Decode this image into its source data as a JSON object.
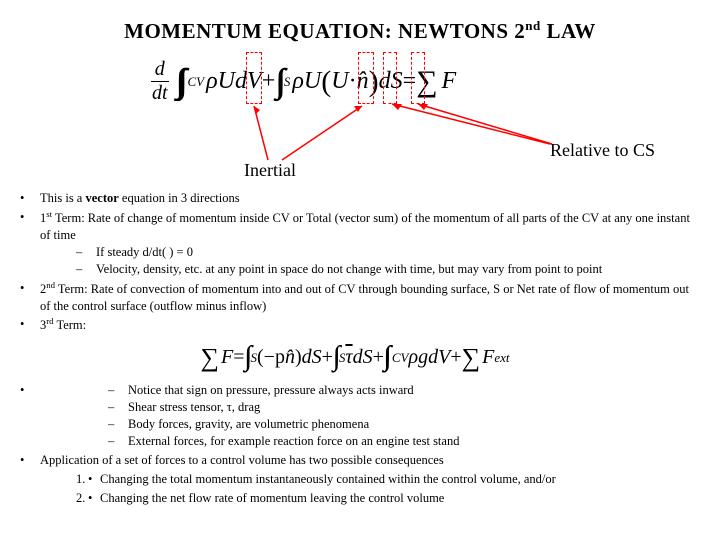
{
  "title_pre": "MOMENTUM EQUATION: NEWTONS 2",
  "title_sup": "nd",
  "title_post": " LAW",
  "eq1": {
    "frac_num": "d",
    "frac_den": "dt",
    "int_cv": "CV",
    "rho": "ρ",
    "U1": "U",
    "dV": "dV",
    "plus": " + ",
    "int_s": "S",
    "U2": "U",
    "lparen": "(",
    "U3": "U",
    "dot": " · ",
    "n": "n̂",
    "rparen": ")",
    "dS": "dS",
    "eq": " = ",
    "sum": "∑",
    "F": "F"
  },
  "label_inertial": "Inertial",
  "label_relative": "Relative to CS",
  "b1": "This is a ",
  "b1_bold": "vector",
  "b1_post": " equation in 3 directions",
  "b2_pre": "1",
  "b2_sup": "st",
  "b2_post": " Term: Rate of change of momentum inside CV or Total (vector sum) of the momentum of all parts of the CV at any one instant of time",
  "b2a": "If steady d/dt( ) = 0",
  "b2b": "Velocity, density, etc. at any point in space do not change with time, but may vary from point to point",
  "b3_pre": "2",
  "b3_sup": "nd",
  "b3_post": " Term: Rate of convection of momentum into and out of CV through bounding surface, S or Net rate of flow of momentum out of the control surface (outflow minus inflow)",
  "b4_pre": "3",
  "b4_sup": "rd",
  "b4_post": " Term:",
  "eq2": {
    "sum": "∑",
    "F": "F",
    "eq": " = ",
    "int_s": "S",
    "neg_p": "(−p",
    "n": "n̂",
    "rparen": ")",
    "dS1": "dS",
    "plus1": " + ",
    "tau": "τ",
    "dS2": "dS",
    "plus2": " + ",
    "int_cv": "CV",
    "rho": "ρ",
    "g": "g",
    "dV": "dV",
    "plus3": " + ",
    "Fext": "F",
    "ext": "ext"
  },
  "b4a": "Notice that sign on pressure, pressure always acts inward",
  "b4b": "Shear stress tensor, τ, drag",
  "b4c": "Body forces, gravity, are volumetric phenomena",
  "b4d": "External forces, for example reaction force on an engine test stand",
  "b5": "Application of a set of forces to a control volume has two possible consequences",
  "b5a": "Changing the total momentum instantaneously contained within the control volume, and/or",
  "b5b": "Changing the net flow rate of momentum leaving the control volume",
  "n1": "1.",
  "n2": "2.",
  "colors": {
    "arrow": "#ff0000",
    "text": "#000000",
    "bg": "#ffffff"
  }
}
